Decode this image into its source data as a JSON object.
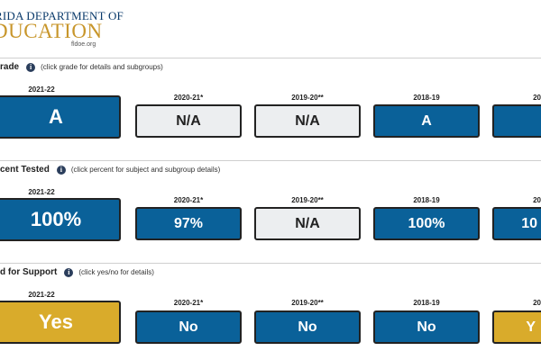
{
  "header": {
    "logo_line1": "RIDA DEPARTMENT OF",
    "logo_line2": "DUCATION",
    "logo_url": "fldoe.org"
  },
  "sections": {
    "grade": {
      "title": "rade",
      "hint": "(click grade for details and subgroups)",
      "tiles": [
        {
          "year": "2021-22",
          "value": "A",
          "style": "blue"
        },
        {
          "year": "2020-21*",
          "value": "N/A",
          "style": "gray"
        },
        {
          "year": "2019-20**",
          "value": "N/A",
          "style": "gray"
        },
        {
          "year": "2018-19",
          "value": "A",
          "style": "blue"
        },
        {
          "year": "20",
          "value": "",
          "style": "blue"
        }
      ]
    },
    "tested": {
      "title": "cent Tested",
      "hint": "(click percent for subject and subgroup details)",
      "tiles": [
        {
          "year": "2021-22",
          "value": "100%",
          "style": "blue"
        },
        {
          "year": "2020-21*",
          "value": "97%",
          "style": "blue"
        },
        {
          "year": "2019-20**",
          "value": "N/A",
          "style": "gray"
        },
        {
          "year": "2018-19",
          "value": "100%",
          "style": "blue"
        },
        {
          "year": "20",
          "value": "10",
          "style": "blue"
        }
      ]
    },
    "support": {
      "title": "d for Support",
      "hint": "(click yes/no for details)",
      "tiles": [
        {
          "year": "2021-22",
          "value": "Yes",
          "style": "gold"
        },
        {
          "year": "2020-21*",
          "value": "No",
          "style": "blue"
        },
        {
          "year": "2019-20**",
          "value": "No",
          "style": "blue"
        },
        {
          "year": "2018-19",
          "value": "No",
          "style": "blue"
        },
        {
          "year": "20",
          "value": "Y",
          "style": "gold"
        }
      ]
    }
  },
  "icons": {
    "info": "info-icon",
    "info_glyph": "i"
  }
}
